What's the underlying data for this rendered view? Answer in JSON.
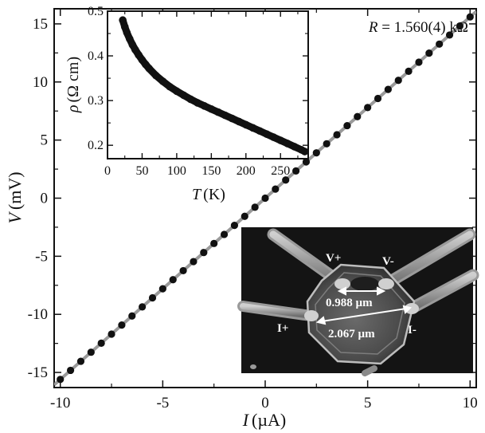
{
  "chart_data": [
    {
      "type": "scatter",
      "xlabel": {
        "symbol": "I",
        "unit": "(µA)"
      },
      "ylabel": {
        "symbol": "V",
        "unit": "(mV)"
      },
      "xlim": [
        -10.3,
        10.3
      ],
      "ylim": [
        -16.3,
        16.3
      ],
      "xticks": [
        -10,
        -5,
        0,
        5,
        10
      ],
      "xtick_labels": [
        "-10",
        "-5",
        "0",
        "5",
        "10"
      ],
      "yticks": [
        -15,
        -10,
        -5,
        0,
        5,
        10,
        15
      ],
      "ytick_labels": [
        "-15",
        "-10",
        "-5",
        "0",
        "5",
        "10",
        "15"
      ],
      "annotation": {
        "lhs": "R",
        "rhs": " = 1.560(4) kΩ"
      },
      "fit_line": {
        "slope": 1.56,
        "intercept": 0,
        "color": "#9a9a9a"
      },
      "series": [
        {
          "marker_color": "#111111",
          "x": [
            -10.0,
            -9.5,
            -9.0,
            -8.5,
            -8.0,
            -7.5,
            -7.0,
            -6.5,
            -6.0,
            -5.5,
            -5.0,
            -4.5,
            -4.0,
            -3.5,
            -3.0,
            -2.5,
            -2.0,
            -1.5,
            -1.0,
            -0.5,
            0.0,
            0.5,
            1.0,
            1.5,
            2.0,
            2.5,
            3.0,
            3.5,
            4.0,
            4.5,
            5.0,
            5.5,
            6.0,
            6.5,
            7.0,
            7.5,
            8.0,
            8.5,
            9.0,
            9.5,
            10.0
          ],
          "y": [
            -15.6,
            -14.82,
            -14.04,
            -13.26,
            -12.48,
            -11.7,
            -10.92,
            -10.14,
            -9.36,
            -8.58,
            -7.8,
            -7.02,
            -6.24,
            -5.46,
            -4.68,
            -3.9,
            -3.12,
            -2.34,
            -1.56,
            -0.78,
            0.0,
            0.78,
            1.56,
            2.34,
            3.12,
            3.9,
            4.68,
            5.46,
            6.24,
            7.02,
            7.8,
            8.58,
            9.36,
            10.14,
            10.92,
            11.7,
            12.48,
            13.26,
            14.04,
            14.82,
            15.6
          ]
        }
      ]
    },
    {
      "type": "scatter",
      "xlabel": {
        "symbol": "T",
        "unit": "(K)"
      },
      "ylabel": {
        "symbol": "ρ",
        "unit": "(Ω cm)"
      },
      "xlim": [
        0,
        290
      ],
      "ylim": [
        0.17,
        0.5
      ],
      "xticks": [
        0,
        50,
        100,
        150,
        200,
        250
      ],
      "xtick_labels": [
        "0",
        "50",
        "100",
        "150",
        "200",
        "250"
      ],
      "yticks": [
        0.2,
        0.3,
        0.4,
        0.5
      ],
      "ytick_labels": [
        "0.2",
        "0.3",
        "0.4",
        "0.5"
      ],
      "series": [
        {
          "marker_color": "#111111",
          "x": [
            22,
            25,
            28,
            32,
            36,
            40,
            45,
            50,
            55,
            60,
            70,
            80,
            90,
            100,
            110,
            120,
            130,
            140,
            150,
            160,
            170,
            180,
            190,
            200,
            210,
            220,
            230,
            240,
            250,
            260,
            270,
            280,
            285
          ],
          "y": [
            0.48,
            0.465,
            0.452,
            0.438,
            0.425,
            0.414,
            0.402,
            0.391,
            0.381,
            0.372,
            0.356,
            0.343,
            0.331,
            0.321,
            0.312,
            0.303,
            0.295,
            0.288,
            0.281,
            0.274,
            0.267,
            0.26,
            0.253,
            0.246,
            0.239,
            0.232,
            0.225,
            0.218,
            0.211,
            0.204,
            0.197,
            0.19,
            0.186
          ]
        }
      ]
    }
  ],
  "micrograph": {
    "labels": {
      "v_plus": "V+",
      "v_minus": "V-",
      "i_plus": "I+",
      "i_minus": "I-",
      "inner_distance": "0.988 µm",
      "outer_distance": "2.067 µm"
    }
  }
}
